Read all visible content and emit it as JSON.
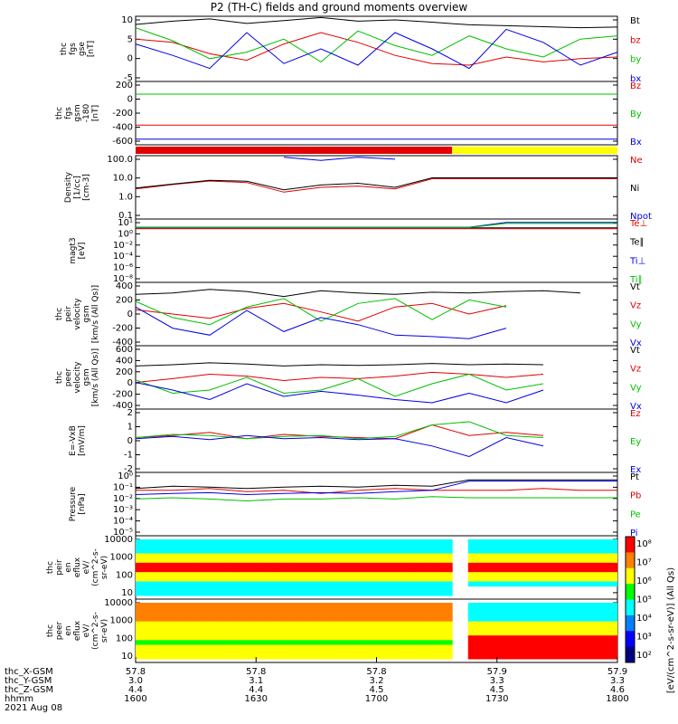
{
  "title": "P2 (TH-C) fields and ground moments overview",
  "colors": {
    "black": "#000000",
    "red": "#e00000",
    "green": "#00c000",
    "blue": "#0000e0",
    "yellow": "#ffff00"
  },
  "chart_data": [
    {
      "type": "line",
      "id": "fgs_gse",
      "ylabel_lines": [
        "thc",
        "fgs",
        "gse",
        "[nT]"
      ],
      "ylim": [
        -10,
        10
      ],
      "yticks": [
        "10",
        "5",
        "0",
        "-5"
      ],
      "series": [
        {
          "name": "Bt",
          "color": "#000000",
          "values": [
            7.5,
            8.5,
            9.2,
            7.8,
            8.7,
            9.6,
            8.5,
            8.9,
            8.2,
            7.4,
            7.1,
            6.8,
            6.5,
            6.7
          ]
        },
        {
          "name": "bz",
          "color": "#e00000",
          "values": [
            3.0,
            2.0,
            -1.5,
            -3.5,
            1.5,
            5.0,
            2.0,
            -2.0,
            -4.5,
            -5.0,
            -2.5,
            -4.0,
            -3.0,
            -2.5
          ]
        },
        {
          "name": "by",
          "color": "#00c000",
          "values": [
            6.5,
            2.5,
            -3.0,
            -1.0,
            3.0,
            -4.0,
            5.5,
            1.0,
            -2.0,
            4.0,
            0.0,
            -2.5,
            3.0,
            4.0
          ]
        },
        {
          "name": "bx",
          "color": "#0000e0",
          "values": [
            1.5,
            -2.0,
            -6.0,
            5.0,
            -4.5,
            0.0,
            -5.0,
            5.0,
            0.0,
            -6.0,
            6.0,
            2.0,
            -5.0,
            -1.0
          ]
        }
      ]
    },
    {
      "type": "line",
      "id": "fgs_gsm",
      "ylabel_lines": [
        "thc",
        "fgs",
        "gsm",
        "-180",
        "[nT]"
      ],
      "ylim": [
        -700,
        200
      ],
      "yticks": [
        "200",
        "0",
        "-200",
        "-400",
        "-600"
      ],
      "series": [
        {
          "name": "Bz",
          "color": "#e00000",
          "values": [
            -420,
            -420,
            -420,
            -420,
            -420,
            -420,
            -420,
            -420,
            -420,
            -420,
            -420,
            -420,
            -420,
            -420
          ]
        },
        {
          "name": "By",
          "color": "#00c000",
          "values": [
            20,
            20,
            20,
            20,
            20,
            20,
            20,
            20,
            20,
            20,
            20,
            20,
            20,
            20
          ]
        },
        {
          "name": "Bx",
          "color": "#0000e0",
          "values": [
            -620,
            -620,
            -620,
            -620,
            -620,
            -620,
            -620,
            -620,
            -620,
            -620,
            -620,
            -620,
            -620,
            -620
          ]
        }
      ]
    },
    {
      "type": "bar",
      "id": "mode_bar",
      "segments": [
        {
          "color": "#e00000",
          "fraction": 0.657
        },
        {
          "color": "#ffff00",
          "fraction": 0.343
        }
      ]
    },
    {
      "type": "line",
      "id": "density",
      "scale": "log",
      "ylabel_lines": [
        "Density",
        "[1/cc]",
        "[cm-3]"
      ],
      "ylim": [
        0.01,
        100
      ],
      "yticks": [
        "100.0",
        "10.0",
        "1.0",
        "0.1"
      ],
      "series": [
        {
          "name": "Ne",
          "color": "#e00000",
          "values": [
            0.8,
            1.5,
            2.5,
            2.0,
            0.5,
            1.0,
            1.2,
            0.8,
            3.5,
            3.5,
            3.5,
            3.5,
            3.5,
            3.5
          ]
        },
        {
          "name": "Ni",
          "color": "#000000",
          "values": [
            0.9,
            1.6,
            2.8,
            2.4,
            0.7,
            1.4,
            1.8,
            1.0,
            4.0,
            4.0,
            4.0,
            4.0,
            4.0,
            4.0
          ]
        },
        {
          "name": "Npot",
          "color": "#0000e0",
          "values": [
            null,
            null,
            null,
            null,
            80,
            50,
            80,
            60,
            null,
            null,
            null,
            null,
            null,
            null
          ]
        }
      ]
    },
    {
      "type": "line",
      "id": "temperature",
      "scale": "log",
      "ylabel_lines": [
        "magt3",
        "[eV]"
      ],
      "ylim": [
        1e-09,
        10
      ],
      "yticks": [
        "10¹",
        "10⁰",
        "10⁻²",
        "10⁻⁴",
        "10⁻⁶",
        "10⁻⁸"
      ],
      "series": [
        {
          "name": "Te⊥",
          "color": "#e00000",
          "values": [
            0.3,
            0.3,
            0.3,
            0.3,
            0.3,
            0.3,
            0.3,
            0.3,
            0.3,
            0.3,
            0.3,
            0.3,
            0.3,
            0.3
          ]
        },
        {
          "name": "Te∥",
          "color": "#000000",
          "values": [
            0.4,
            0.4,
            0.4,
            0.4,
            0.4,
            0.4,
            0.4,
            0.4,
            0.4,
            0.4,
            0.4,
            0.4,
            0.4,
            0.4
          ]
        },
        {
          "name": "Ti⊥",
          "color": "#0000e0",
          "values": [
            0.5,
            0.5,
            0.5,
            0.5,
            0.5,
            0.5,
            0.5,
            0.5,
            0.5,
            0.5,
            3,
            3,
            3,
            3
          ]
        },
        {
          "name": "Ti∥",
          "color": "#00c000",
          "values": [
            0.45,
            0.45,
            0.45,
            0.45,
            0.45,
            0.45,
            0.45,
            0.45,
            0.45,
            0.45,
            2,
            2,
            2,
            2
          ]
        }
      ]
    },
    {
      "type": "line",
      "id": "peir_velocity_gsm",
      "ylabel_lines": [
        "thc",
        "peir",
        "velocity",
        "gsm",
        "[km/s (All Qs)]"
      ],
      "ylim": [
        -450,
        450
      ],
      "yticks": [
        "400",
        "200",
        "0",
        "-200",
        "-400"
      ],
      "series": [
        {
          "name": "Vt",
          "color": "#000000",
          "values": [
            280,
            300,
            350,
            320,
            250,
            330,
            300,
            280,
            310,
            300,
            320,
            330,
            300,
            null
          ]
        },
        {
          "name": "Vz",
          "color": "#e00000",
          "values": [
            60,
            0,
            -60,
            80,
            150,
            30,
            -100,
            100,
            150,
            0,
            120,
            null,
            null,
            null
          ]
        },
        {
          "name": "Vy",
          "color": "#00c000",
          "values": [
            180,
            -50,
            -150,
            100,
            220,
            -100,
            150,
            220,
            -80,
            200,
            100,
            null,
            null,
            null
          ]
        },
        {
          "name": "Vx",
          "color": "#0000e0",
          "values": [
            100,
            -200,
            -300,
            50,
            -250,
            -50,
            -150,
            -300,
            -320,
            -350,
            -200,
            null,
            null,
            null
          ]
        }
      ]
    },
    {
      "type": "line",
      "id": "peer_velocity_gsm",
      "ylabel_lines": [
        "thc",
        "peer",
        "velocity",
        "gsm",
        "[km/s (All Qs)]"
      ],
      "ylim": [
        -400,
        600
      ],
      "yticks": [
        "600",
        "400",
        "200",
        "0",
        "-200",
        "-400"
      ],
      "series": [
        {
          "name": "Vt",
          "color": "#000000",
          "values": [
            280,
            300,
            330,
            310,
            280,
            300,
            290,
            300,
            320,
            300,
            310,
            300,
            null,
            null
          ]
        },
        {
          "name": "Vz",
          "color": "#e00000",
          "values": [
            20,
            80,
            150,
            120,
            50,
            100,
            80,
            120,
            180,
            150,
            100,
            150,
            null,
            null
          ]
        },
        {
          "name": "Vy",
          "color": "#00c000",
          "values": [
            60,
            -150,
            -100,
            100,
            -150,
            -100,
            80,
            -200,
            0,
            150,
            -100,
            0,
            null,
            null
          ]
        },
        {
          "name": "Vx",
          "color": "#0000e0",
          "values": [
            20,
            -100,
            -250,
            0,
            -200,
            -120,
            -180,
            -250,
            -300,
            -150,
            -300,
            -100,
            null,
            null
          ]
        }
      ]
    },
    {
      "type": "line",
      "id": "e_field",
      "ylabel_lines": [
        "E=-VxB",
        "[mV/m]"
      ],
      "ylim": [
        -3,
        3
      ],
      "yticks": [
        "2",
        "1",
        "0",
        "-1",
        "-2"
      ],
      "series": [
        {
          "name": "Ez",
          "color": "#e00000",
          "values": [
            0.3,
            0.5,
            0.8,
            0.2,
            0.6,
            0.4,
            0.3,
            0.2,
            1.5,
            0.5,
            0.8,
            0.5,
            null,
            null
          ]
        },
        {
          "name": "Ey",
          "color": "#00c000",
          "values": [
            0.3,
            0.6,
            0.5,
            0.2,
            0.4,
            0.5,
            0.2,
            0.4,
            1.5,
            1.8,
            0.5,
            0.3,
            null,
            null
          ]
        },
        {
          "name": "Ex",
          "color": "#0000e0",
          "values": [
            0.2,
            0.4,
            0.1,
            0.5,
            0.2,
            0.3,
            0.1,
            0.2,
            -0.5,
            -1.5,
            0.3,
            -0.5,
            null,
            null
          ]
        }
      ]
    },
    {
      "type": "line",
      "id": "pressure",
      "scale": "log",
      "ylabel_lines": [
        "Pressure",
        "[nPa]"
      ],
      "ylim": [
        1e-06,
        1
      ],
      "yticks": [
        "10⁰",
        "10⁻¹",
        "10⁻²",
        "10⁻³",
        "10⁻⁴",
        "10⁻⁵"
      ],
      "series": [
        {
          "name": "Pt",
          "color": "#000000",
          "values": [
            0.03,
            0.05,
            0.04,
            0.03,
            0.04,
            0.05,
            0.04,
            0.06,
            0.05,
            0.2,
            0.2,
            0.2,
            0.2,
            0.2
          ]
        },
        {
          "name": "Pb",
          "color": "#e00000",
          "values": [
            0.02,
            0.02,
            0.03,
            0.015,
            0.02,
            0.01,
            0.02,
            0.03,
            0.02,
            0.02,
            0.02,
            0.03,
            0.02,
            0.02
          ]
        },
        {
          "name": "Pe",
          "color": "#00c000",
          "values": [
            0.003,
            0.004,
            0.003,
            0.002,
            0.003,
            0.003,
            0.004,
            0.003,
            0.005,
            0.004,
            0.004,
            0.004,
            0.004,
            0.004
          ]
        },
        {
          "name": "Pi",
          "color": "#0000e0",
          "values": [
            0.008,
            0.01,
            0.012,
            0.008,
            0.01,
            0.012,
            0.01,
            0.015,
            0.02,
            0.15,
            0.15,
            0.15,
            0.15,
            0.15
          ]
        }
      ]
    },
    {
      "type": "heatmap",
      "id": "peir_eflux",
      "ylabel_lines": [
        "thc",
        "peir",
        "en",
        "eflux",
        "eV/",
        "(cm^2-s-",
        "sr-eV)"
      ],
      "ylim": [
        5,
        15000
      ],
      "yticks": [
        "10000",
        "1000",
        "100",
        "10"
      ]
    },
    {
      "type": "heatmap",
      "id": "peer_eflux",
      "ylabel_lines": [
        "thc",
        "peer",
        "en",
        "eflux",
        "eV/",
        "(cm^2-s-",
        "sr-eV)"
      ],
      "ylim": [
        5,
        15000
      ],
      "yticks": [
        "10000",
        "1000",
        "100",
        "10"
      ]
    }
  ],
  "colorbar": {
    "label": "[eV/(cm^2-s-sr-eV)] (All Qs)",
    "ticks": [
      "10⁸",
      "10⁷",
      "10⁶",
      "10⁵",
      "10⁴",
      "10³",
      "10²"
    ],
    "colors": [
      "#ff0000",
      "#ff8000",
      "#ffff00",
      "#00ff00",
      "#00ffff",
      "#0080ff",
      "#0000ff",
      "#000080"
    ]
  },
  "xaxis": {
    "ticks": [
      "1600",
      "1630",
      "1700",
      "1730",
      "1800"
    ],
    "rows": [
      {
        "label": "thc_X-GSM",
        "values": [
          "57.8",
          "57.8",
          "57.8",
          "57.9",
          "57.9"
        ]
      },
      {
        "label": "thc_Y-GSM",
        "values": [
          "3.0",
          "3.1",
          "3.2",
          "3.3",
          "3.3"
        ]
      },
      {
        "label": "thc_Z-GSM",
        "values": [
          "4.4",
          "4.4",
          "4.5",
          "4.5",
          "4.6"
        ]
      },
      {
        "label": "hhmm",
        "values": [
          "1600",
          "1630",
          "1700",
          "1730",
          "1800"
        ]
      }
    ],
    "date": "2021 Aug 08"
  }
}
